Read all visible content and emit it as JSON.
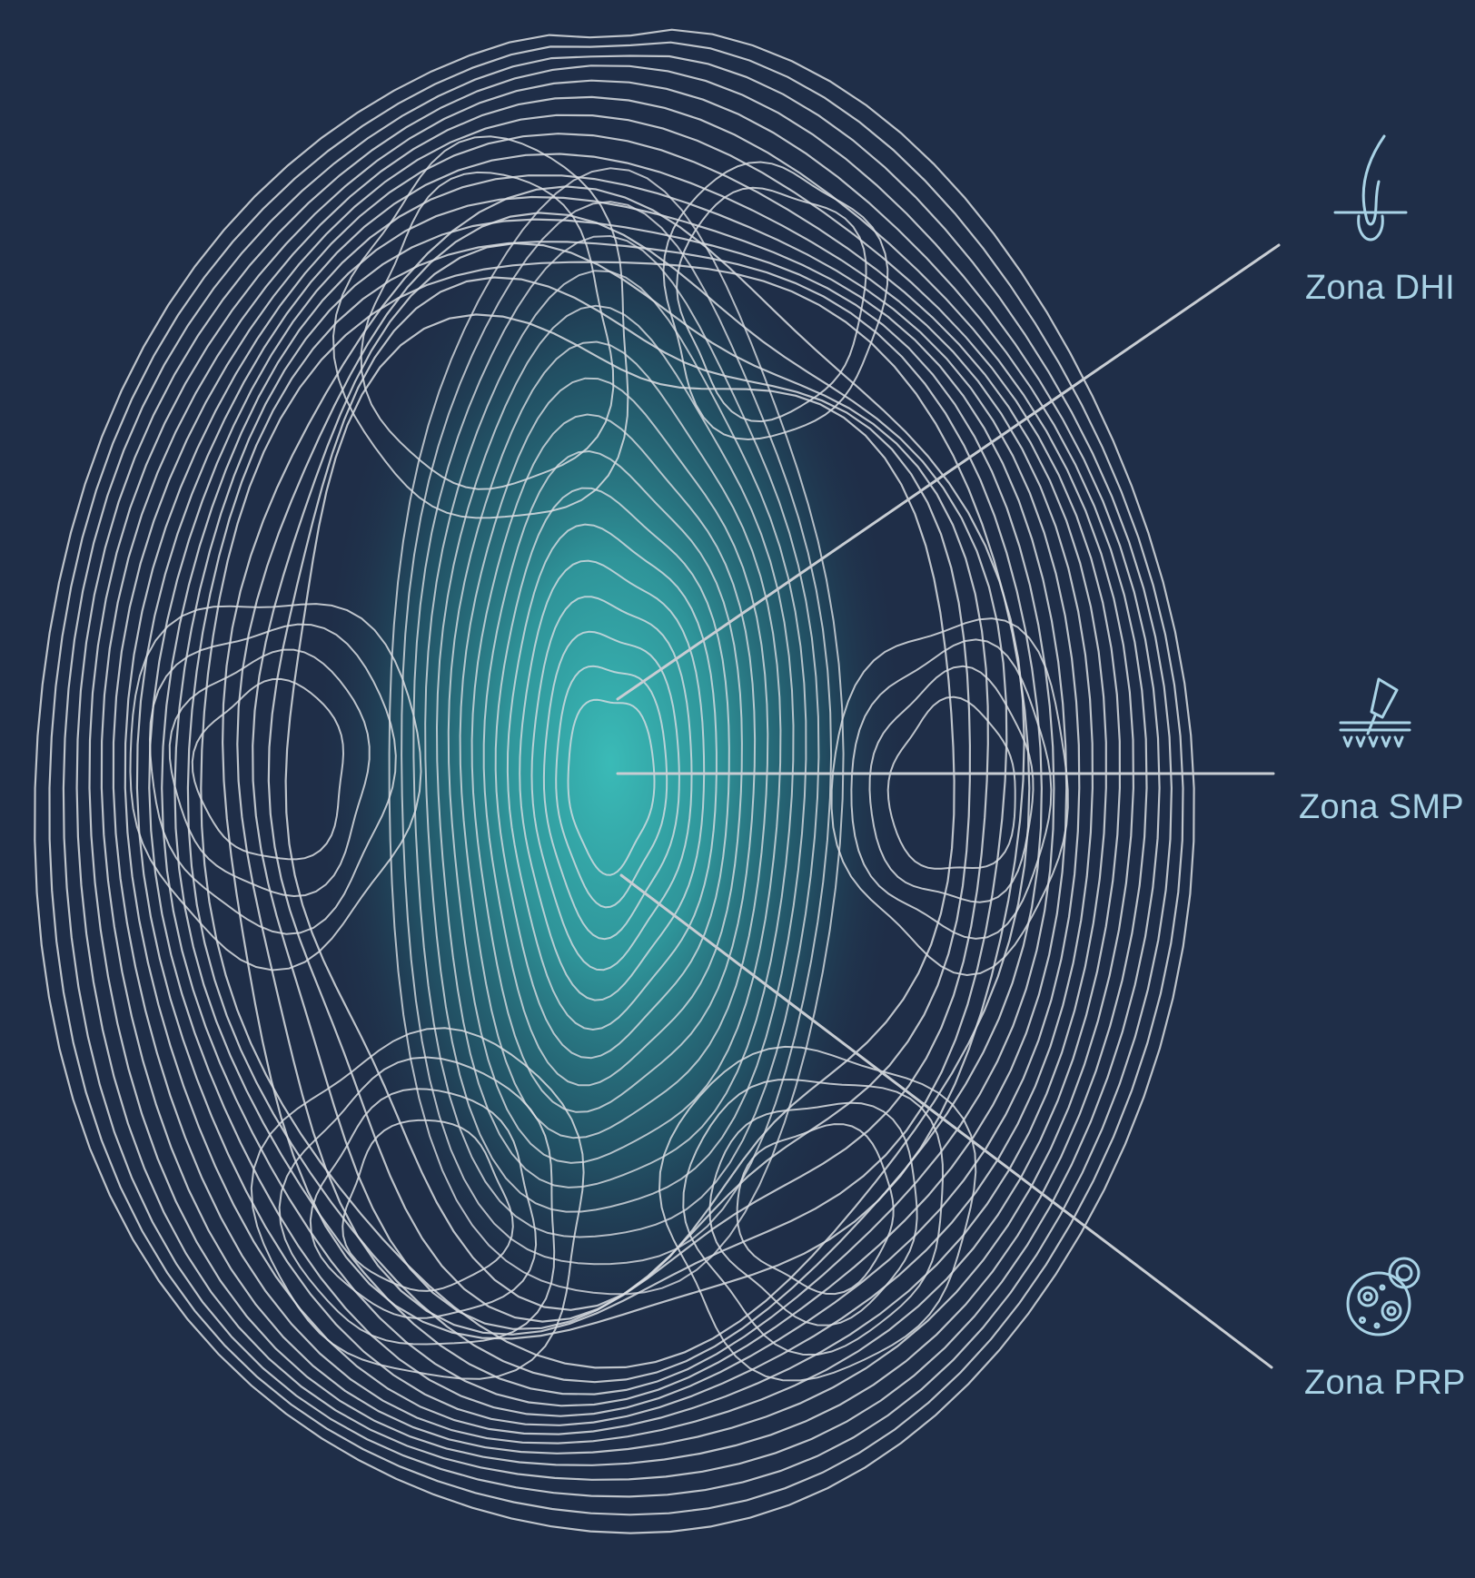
{
  "colors": {
    "background": "#1f2e48",
    "contour": "#d9dde2",
    "glow": "#3cc2bd",
    "label": "#a9d3e6",
    "leader": "#c8cdd3"
  },
  "zones": [
    {
      "key": "dhi",
      "label": "Zona DHI",
      "icon": "hair-follicle-icon"
    },
    {
      "key": "smp",
      "label": "Zona SMP",
      "icon": "micropigmentation-needle-icon"
    },
    {
      "key": "prp",
      "label": "Zona PRP",
      "icon": "platelet-cells-icon"
    }
  ]
}
